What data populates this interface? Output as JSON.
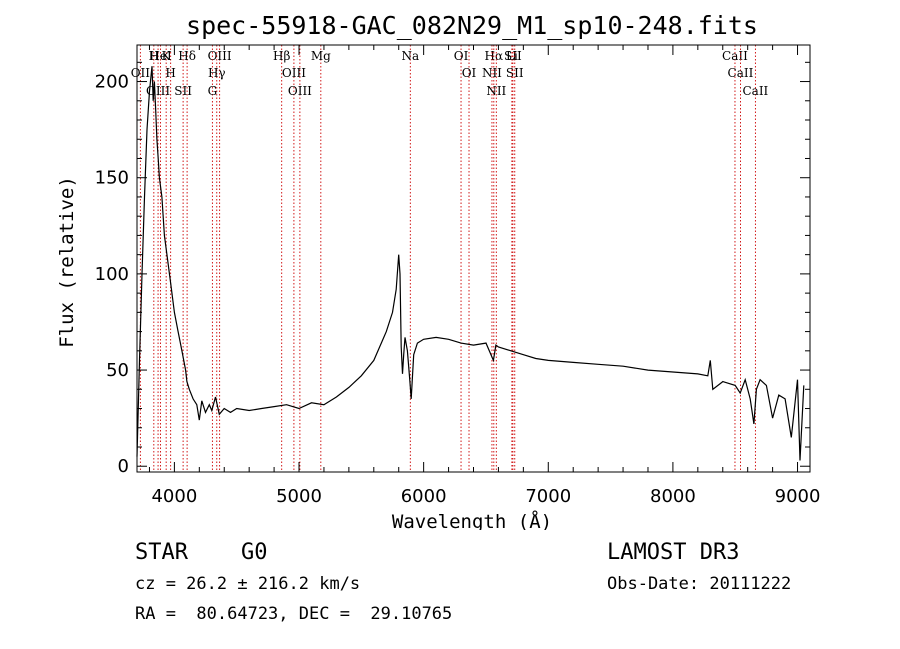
{
  "chart_data": {
    "type": "line",
    "title": "spec-55918-GAC_082N29_M1_sp10-248.fits",
    "xlabel": "Wavelength (Å)",
    "ylabel": "Flux (relative)",
    "xlim": [
      3700,
      9100
    ],
    "ylim": [
      -3,
      219
    ],
    "x_ticks": [
      "4000",
      "5000",
      "6000",
      "7000",
      "8000",
      "9000"
    ],
    "y_ticks": [
      "0",
      "50",
      "100",
      "150",
      "200"
    ],
    "grid": false,
    "series": [
      {
        "x": [
          3700,
          3720,
          3740,
          3760,
          3780,
          3800,
          3820,
          3830,
          3840,
          3850,
          3860,
          3870,
          3880,
          3900,
          3920,
          3950,
          3970,
          4000,
          4030,
          4060,
          4090,
          4100,
          4120,
          4150,
          4180,
          4200,
          4220,
          4250,
          4280,
          4300,
          4330,
          4360,
          4400,
          4450,
          4500,
          4600,
          4700,
          4800,
          4900,
          5000,
          5100,
          5200,
          5300,
          5400,
          5500,
          5600,
          5700,
          5750,
          5780,
          5800,
          5810,
          5820,
          5830,
          5840,
          5850,
          5870,
          5890,
          5900,
          5920,
          5950,
          6000,
          6100,
          6200,
          6300,
          6400,
          6500,
          6560,
          6580,
          6600,
          6700,
          6800,
          6900,
          7000,
          7200,
          7400,
          7600,
          7800,
          8000,
          8200,
          8280,
          8300,
          8320,
          8400,
          8500,
          8540,
          8580,
          8620,
          8650,
          8670,
          8700,
          8750,
          8800,
          8850,
          8900,
          8950,
          9000,
          9020,
          9050
        ],
        "y": [
          5,
          55,
          100,
          140,
          175,
          195,
          208,
          190,
          200,
          185,
          170,
          160,
          150,
          140,
          120,
          105,
          95,
          80,
          70,
          60,
          50,
          44,
          40,
          35,
          32,
          24,
          34,
          28,
          32,
          29,
          36,
          27,
          30,
          28,
          30,
          29,
          30,
          31,
          32,
          30,
          33,
          32,
          36,
          41,
          47,
          55,
          70,
          80,
          92,
          110,
          100,
          62,
          48,
          58,
          67,
          60,
          44,
          35,
          58,
          64,
          66,
          67,
          66,
          64,
          63,
          64,
          55,
          63,
          62,
          60,
          58,
          56,
          55,
          54,
          53,
          52,
          50,
          49,
          48,
          47,
          55,
          40,
          44,
          42,
          38,
          45,
          35,
          22,
          40,
          45,
          42,
          25,
          37,
          35,
          15,
          45,
          3,
          42
        ]
      }
    ],
    "line_markers": [
      {
        "label": "H",
        "x": 3835
      },
      {
        "label": "K",
        "x": 3934
      },
      {
        "label": "Hδ",
        "x": 4102
      },
      {
        "label": "OIII",
        "x": 4363
      },
      {
        "label": "Hγ",
        "x": 4340
      },
      {
        "label": "G",
        "x": 4305
      },
      {
        "label": "OII",
        "x": 3727
      },
      {
        "label": "OIII",
        "x": 3869
      },
      {
        "label": "H",
        "x": 3970
      },
      {
        "label": "HeI",
        "x": 3889
      },
      {
        "label": "SII",
        "x": 4070
      },
      {
        "label": "Hβ",
        "x": 4861
      },
      {
        "label": "OIII",
        "x": 4959
      },
      {
        "label": "OIII",
        "x": 5007
      },
      {
        "label": "Mg",
        "x": 5175
      },
      {
        "label": "Na",
        "x": 5893
      },
      {
        "label": "OI",
        "x": 6300
      },
      {
        "label": "OI",
        "x": 6364
      },
      {
        "label": "Hα",
        "x": 6563
      },
      {
        "label": "NII",
        "x": 6548
      },
      {
        "label": "NII",
        "x": 6583
      },
      {
        "label": "SII",
        "x": 6716
      },
      {
        "label": "SII",
        "x": 6731
      },
      {
        "label": "Li",
        "x": 6708
      },
      {
        "label": "CaII",
        "x": 8498
      },
      {
        "label": "CaII",
        "x": 8542
      },
      {
        "label": "CaII",
        "x": 8662
      }
    ]
  },
  "info": {
    "class_line": "STAR    G0",
    "survey": "LAMOST DR3",
    "cz": "cz = 26.2 ± 216.2 km/s",
    "obs_date": "Obs-Date: 20111222",
    "radec": "RA =  80.64723, DEC =  29.10765"
  }
}
